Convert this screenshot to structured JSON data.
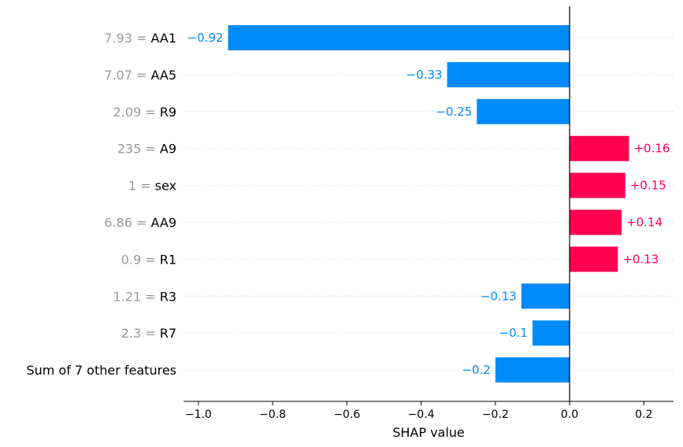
{
  "chart_data": {
    "type": "bar",
    "orientation": "horizontal",
    "xlabel": "SHAP value",
    "xlim": [
      -1.04,
      0.28
    ],
    "xticks": [
      -1.0,
      -0.8,
      -0.6,
      -0.4,
      -0.2,
      0.0,
      0.2
    ],
    "xtick_labels": [
      "−1.0",
      "−0.8",
      "−0.6",
      "−0.4",
      "−0.2",
      "0.0",
      "0.2"
    ],
    "grid": "horizontal dotted",
    "colors": {
      "negative": "#008bfb",
      "positive": "#ff0051",
      "feature_value": "#999999",
      "zero_line": "#000000"
    },
    "rows": [
      {
        "feature_value": "7.93",
        "feature": "AA1",
        "value": -0.92,
        "label": "−0.92"
      },
      {
        "feature_value": "7.07",
        "feature": "AA5",
        "value": -0.33,
        "label": "−0.33"
      },
      {
        "feature_value": "2.09",
        "feature": "R9",
        "value": -0.25,
        "label": "−0.25"
      },
      {
        "feature_value": "235",
        "feature": "A9",
        "value": 0.16,
        "label": "+0.16"
      },
      {
        "feature_value": "1",
        "feature": "sex",
        "value": 0.15,
        "label": "+0.15"
      },
      {
        "feature_value": "6.86",
        "feature": "AA9",
        "value": 0.14,
        "label": "+0.14"
      },
      {
        "feature_value": "0.9",
        "feature": "R1",
        "value": 0.13,
        "label": "+0.13"
      },
      {
        "feature_value": "1.21",
        "feature": "R3",
        "value": -0.13,
        "label": "−0.13"
      },
      {
        "feature_value": "2.3",
        "feature": "R7",
        "value": -0.1,
        "label": "−0.1"
      },
      {
        "feature_value": "",
        "feature": "Sum of 7 other features",
        "value": -0.2,
        "label": "−0.2"
      }
    ]
  }
}
